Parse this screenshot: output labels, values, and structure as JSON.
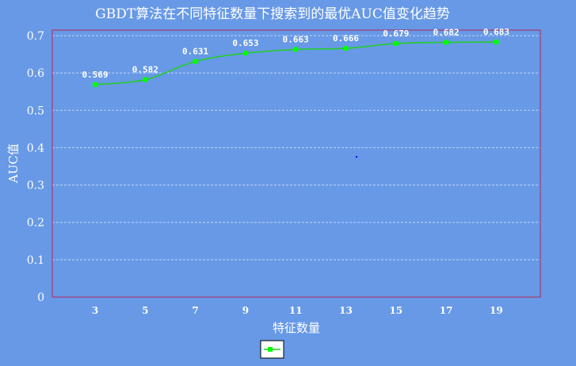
{
  "chart_data": {
    "type": "line",
    "title": "GBDT算法在不同特征数量下搜索到的最优AUC值变化趋势",
    "xlabel": "特征数量",
    "ylabel": "AUC值",
    "x": [
      3,
      5,
      7,
      9,
      11,
      13,
      15,
      17,
      19
    ],
    "series": [
      {
        "name": "",
        "values": [
          0.569,
          0.582,
          0.631,
          0.653,
          0.663,
          0.666,
          0.679,
          0.682,
          0.683
        ]
      }
    ],
    "ylim": [
      0,
      0.7
    ],
    "yticks": [
      "0",
      "0.1",
      "0.2",
      "0.3",
      "0.4",
      "0.5",
      "0.6",
      "0.7"
    ],
    "xticks": [
      "3",
      "5",
      "7",
      "9",
      "11",
      "13",
      "15",
      "17",
      "19"
    ],
    "data_labels": [
      "0.569",
      "0.582",
      "0.631",
      "0.653",
      "0.663",
      "0.666",
      "0.679",
      "0.682",
      "0.683"
    ],
    "grid": true,
    "legend": "bottom-center",
    "colors": {
      "background": "#6799E6",
      "plot_border": "#B0285A",
      "line": "#1FD01F",
      "marker": "#00FF00",
      "grid": "#BFD4F5",
      "text": "#FFFFFF"
    }
  }
}
